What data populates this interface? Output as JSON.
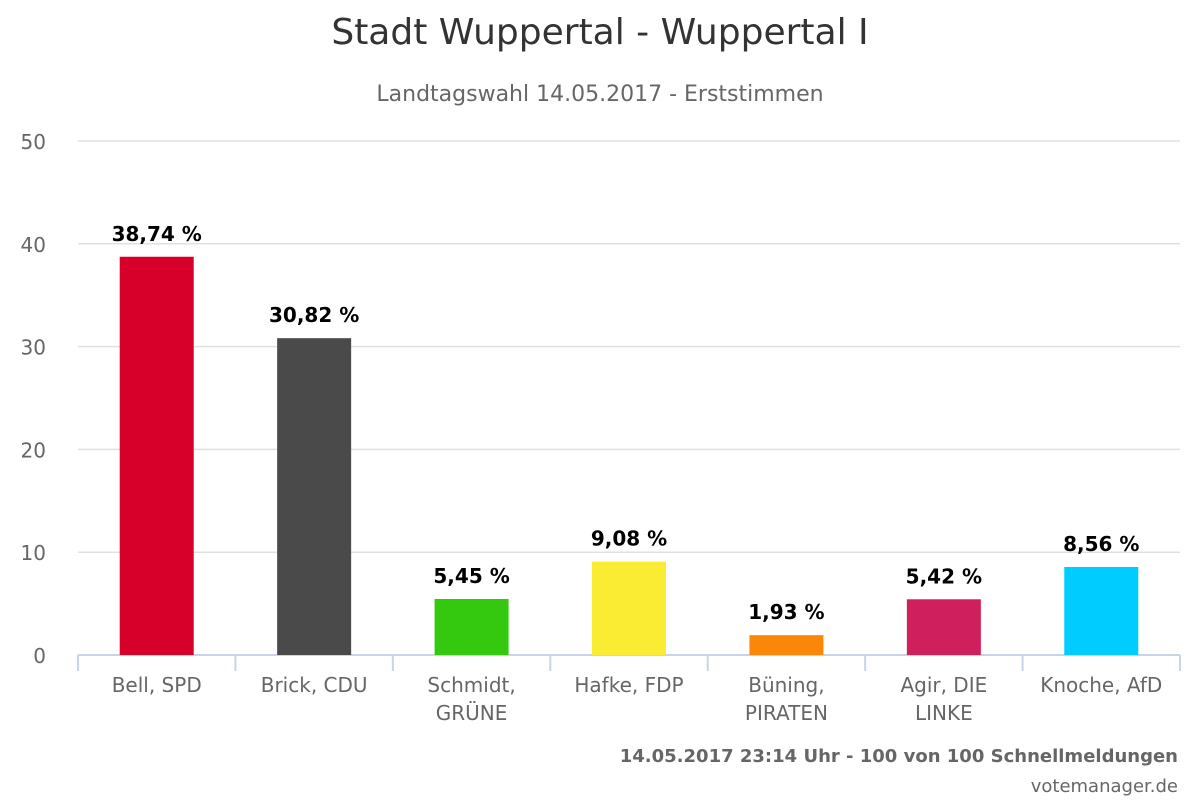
{
  "chart_data": {
    "type": "bar",
    "title": "Stadt Wuppertal - Wuppertal I",
    "subtitle": "Landtagswahl 14.05.2017 - Erststimmen",
    "categories": [
      [
        "Bell, SPD"
      ],
      [
        "Brick, CDU"
      ],
      [
        "Schmidt,",
        "GRÜNE"
      ],
      [
        "Hafke, FDP"
      ],
      [
        "Büning,",
        "PIRATEN"
      ],
      [
        "Agir, DIE",
        "LINKE"
      ],
      [
        "Knoche, AfD"
      ]
    ],
    "values": [
      38.74,
      30.82,
      5.45,
      9.08,
      1.93,
      5.42,
      8.56
    ],
    "data_labels": [
      "38,74 %",
      "30,82 %",
      "5,45 %",
      "9,08 %",
      "1,93 %",
      "5,42 %",
      "8,56 %"
    ],
    "colors": [
      "#d7002a",
      "#4a4a4a",
      "#34c90e",
      "#f9ec33",
      "#fa8708",
      "#cf1f5d",
      "#00ccff"
    ],
    "yticks": [
      0,
      10,
      20,
      30,
      40,
      50
    ],
    "ylim": [
      0,
      50
    ],
    "grid": true,
    "xlabel": "",
    "ylabel": ""
  },
  "footer": {
    "status": "14.05.2017 23:14 Uhr - 100 von 100 Schnellmeldungen",
    "credit": "votemanager.de"
  }
}
